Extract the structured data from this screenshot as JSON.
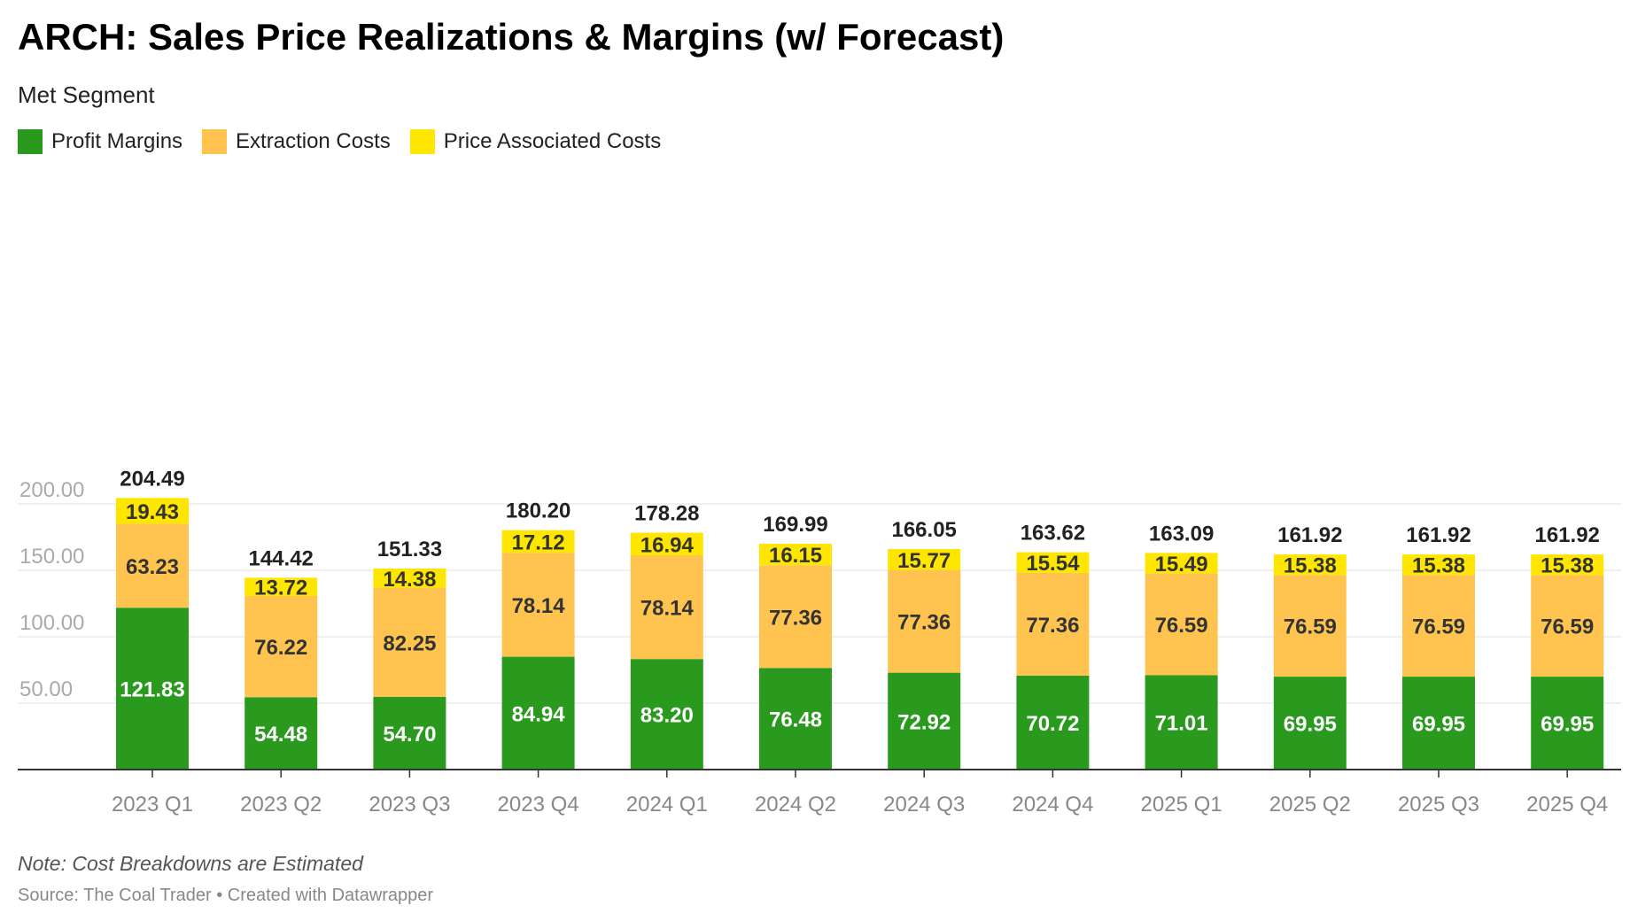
{
  "header": {
    "title": "ARCH: Sales Price Realizations & Margins (w/ Forecast)",
    "subtitle": "Met Segment"
  },
  "legend": [
    {
      "label": "Profit Margins",
      "color": "#2a9a1f"
    },
    {
      "label": "Extraction Costs",
      "color": "#fec44f"
    },
    {
      "label": "Price Associated Costs",
      "color": "#ffe600"
    }
  ],
  "footer": {
    "note": "Note: Cost Breakdowns are Estimated",
    "source": "Source: The Coal Trader • Created with Datawrapper"
  },
  "chart_data": {
    "type": "bar",
    "stacked": true,
    "categories": [
      "2023 Q1",
      "2023 Q2",
      "2023 Q3",
      "2023 Q4",
      "2024 Q1",
      "2024 Q2",
      "2024 Q3",
      "2024 Q4",
      "2025 Q1",
      "2025 Q2",
      "2025 Q3",
      "2025 Q4"
    ],
    "series": [
      {
        "name": "Profit Margins",
        "color": "#2a9a1f",
        "label_color": "#ffffff",
        "values": [
          121.83,
          54.48,
          54.7,
          84.94,
          83.2,
          76.48,
          72.92,
          70.72,
          71.01,
          69.95,
          69.95,
          69.95
        ]
      },
      {
        "name": "Extraction Costs",
        "color": "#fec44f",
        "label_color": "#333333",
        "values": [
          63.23,
          76.22,
          82.25,
          78.14,
          78.14,
          77.36,
          77.36,
          77.36,
          76.59,
          76.59,
          76.59,
          76.59
        ]
      },
      {
        "name": "Price Associated Costs",
        "color": "#ffe600",
        "label_color": "#333333",
        "values": [
          19.43,
          13.72,
          14.38,
          17.12,
          16.94,
          16.15,
          15.77,
          15.54,
          15.49,
          15.38,
          15.38,
          15.38
        ]
      }
    ],
    "totals": [
      204.49,
      144.42,
      151.33,
      180.2,
      178.28,
      169.99,
      166.05,
      163.62,
      163.09,
      161.92,
      161.92,
      161.92
    ],
    "y_ticks": [
      "50.00",
      "100.00",
      "150.00",
      "200.00"
    ],
    "y_tick_values": [
      50,
      100,
      150,
      200
    ],
    "ylim": [
      0,
      215
    ],
    "grid": true
  }
}
